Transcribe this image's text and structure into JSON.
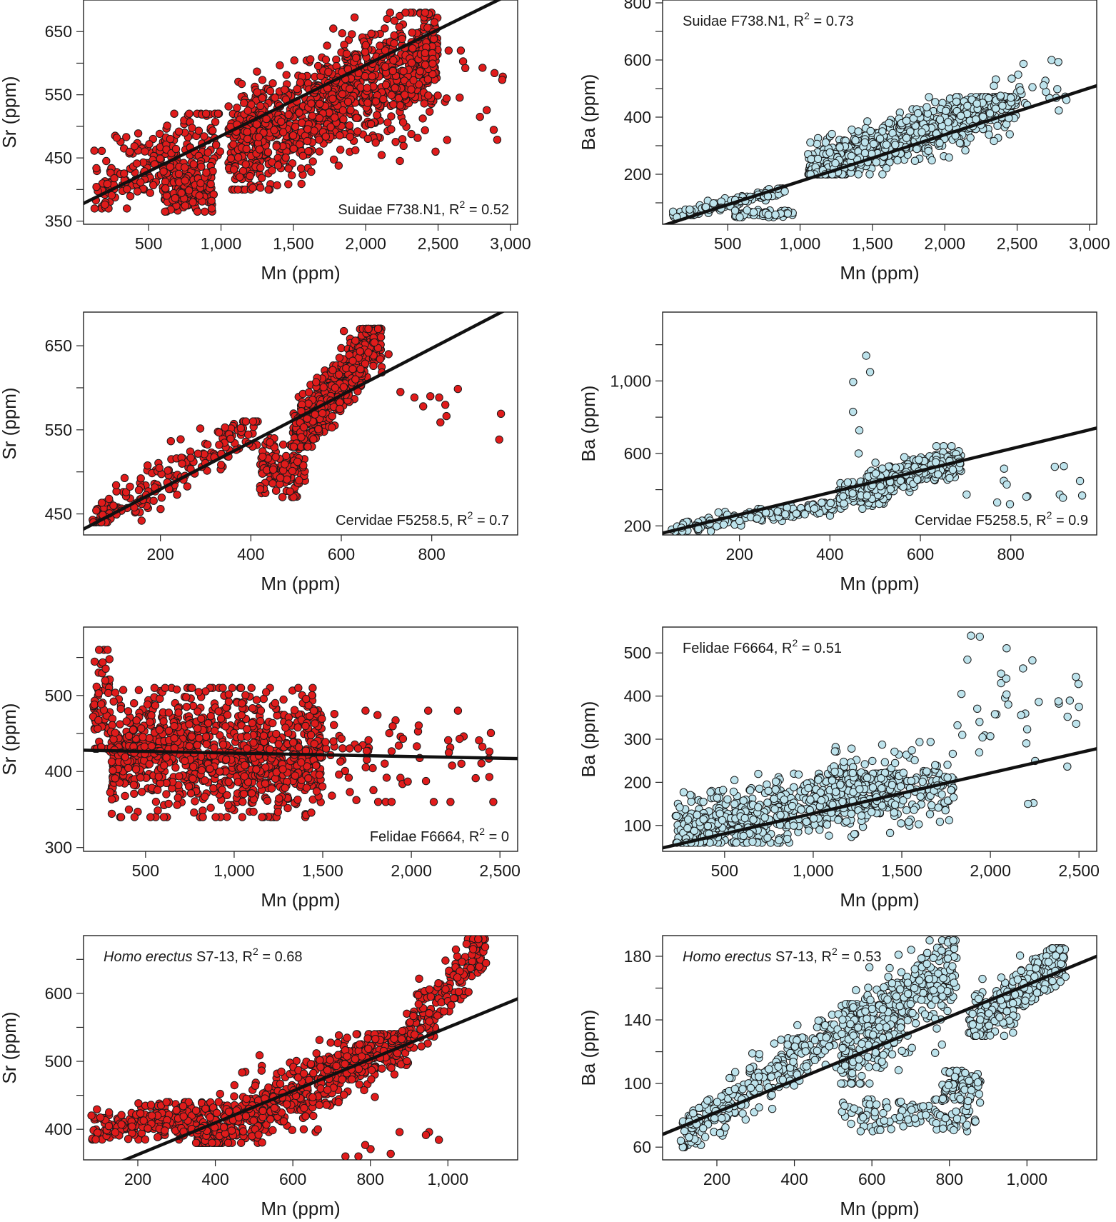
{
  "figure": {
    "colors": {
      "sr_points": "#e01b1b",
      "ba_points": "#bde3ec",
      "point_edge": "#1a1a1a",
      "line": "#111111"
    },
    "x_label": "Mn (ppm)"
  },
  "chart_data": [
    {
      "id": "suidae-sr",
      "type": "scatter",
      "title": "",
      "xlabel": "Mn (ppm)",
      "ylabel": "Sr (ppm)",
      "xlim": [
        50,
        3050
      ],
      "ylim": [
        345,
        700
      ],
      "xticks": [
        500,
        1000,
        1500,
        2000,
        2500,
        3000
      ],
      "xtick_labels": [
        "500",
        "1,000",
        "1,500",
        "2,000",
        "2,500",
        "3,000"
      ],
      "yticks": [
        350,
        450,
        550,
        650
      ],
      "yminor": [
        400,
        500,
        600
      ],
      "ytick_labels": [
        "350",
        "450",
        "550",
        "650"
      ],
      "annotation": {
        "pos": "bottom-right",
        "taxon": "Suidae",
        "taxon_italic": false,
        "specimen": "F738.N1",
        "r2": "0.52"
      },
      "point_color": "#e01b1b",
      "fit": {
        "x0": 50,
        "y0": 378,
        "x1": 3050,
        "y1": 715
      },
      "clusters": [
        {
          "n": 200,
          "x": [
            120,
            1000
          ],
          "y": [
            370,
            520
          ],
          "slope": 0.12,
          "sd": 28,
          "seed": 11
        },
        {
          "n": 170,
          "x": [
            600,
            950
          ],
          "y": [
            365,
            440
          ],
          "sd": 18,
          "seed": 12
        },
        {
          "n": 1100,
          "x": [
            1050,
            2500
          ],
          "y": [
            400,
            680
          ],
          "slope": 0.11,
          "sd": 40,
          "seed": 13
        },
        {
          "n": 40,
          "x": [
            1800,
            2950
          ],
          "y": [
            460,
            620
          ],
          "sd": 40,
          "seed": 14
        }
      ]
    },
    {
      "id": "suidae-ba",
      "type": "scatter",
      "title": "",
      "xlabel": "Mn (ppm)",
      "ylabel": "Ba (ppm)",
      "xlim": [
        50,
        3050
      ],
      "ylim": [
        25,
        810
      ],
      "xticks": [
        500,
        1000,
        1500,
        2000,
        2500,
        3000
      ],
      "xtick_labels": [
        "500",
        "1,000",
        "1,500",
        "2,000",
        "2,500",
        "3,000"
      ],
      "yticks": [
        200,
        400,
        600,
        800
      ],
      "yminor": [
        100,
        300,
        500,
        700
      ],
      "ytick_labels": [
        "200",
        "400",
        "600",
        "800"
      ],
      "annotation": {
        "pos": "top-left",
        "taxon": "Suidae",
        "taxon_italic": false,
        "specimen": "F738.N1",
        "r2": "0.73"
      },
      "point_color": "#bde3ec",
      "fit": {
        "x0": 50,
        "y0": 20,
        "x1": 3050,
        "y1": 510
      },
      "clusters": [
        {
          "n": 110,
          "x": [
            120,
            900
          ],
          "y": [
            50,
            150
          ],
          "slope": 0.13,
          "sd": 10,
          "seed": 21
        },
        {
          "n": 70,
          "x": [
            550,
            950
          ],
          "y": [
            50,
            75
          ],
          "sd": 6,
          "seed": 22
        },
        {
          "n": 900,
          "x": [
            1050,
            2500
          ],
          "y": [
            200,
            470
          ],
          "slope": 0.18,
          "sd": 40,
          "seed": 23
        },
        {
          "n": 30,
          "x": [
            2300,
            2900
          ],
          "y": [
            380,
            600
          ],
          "sd": 50,
          "seed": 24
        }
      ]
    },
    {
      "id": "cervidae-sr",
      "type": "scatter",
      "title": "",
      "xlabel": "Mn (ppm)",
      "ylabel": "Sr (ppm)",
      "xlim": [
        30,
        990
      ],
      "ylim": [
        425,
        690
      ],
      "xticks": [
        200,
        400,
        600,
        800
      ],
      "xtick_labels": [
        "200",
        "400",
        "600",
        "800"
      ],
      "yticks": [
        450,
        550,
        650
      ],
      "yminor": [
        500,
        600
      ],
      "ytick_labels": [
        "450",
        "550",
        "650"
      ],
      "annotation": {
        "pos": "bottom-right",
        "taxon": "Cervidae",
        "taxon_italic": false,
        "specimen": "F5258.5",
        "r2": "0.7"
      },
      "point_color": "#e01b1b",
      "fit": {
        "x0": 30,
        "y0": 432,
        "x1": 990,
        "y1": 700
      },
      "clusters": [
        {
          "n": 180,
          "x": [
            50,
            420
          ],
          "y": [
            440,
            560
          ],
          "slope": 0.32,
          "sd": 14,
          "seed": 31
        },
        {
          "n": 130,
          "x": [
            420,
            520
          ],
          "y": [
            470,
            540
          ],
          "sd": 18,
          "seed": 32
        },
        {
          "n": 550,
          "x": [
            490,
            690
          ],
          "y": [
            530,
            670
          ],
          "slope": 0.65,
          "sd": 18,
          "seed": 33
        },
        {
          "n": 12,
          "x": [
            700,
            960
          ],
          "y": [
            520,
            640
          ],
          "sd": 40,
          "seed": 34
        }
      ]
    },
    {
      "id": "cervidae-ba",
      "type": "scatter",
      "title": "",
      "xlabel": "Mn (ppm)",
      "ylabel": "Ba (ppm)",
      "xlim": [
        30,
        990
      ],
      "ylim": [
        150,
        1380
      ],
      "xticks": [
        200,
        400,
        600,
        800
      ],
      "xtick_labels": [
        "200",
        "400",
        "600",
        "800"
      ],
      "yticks": [
        200,
        600,
        1000
      ],
      "yminor": [
        400,
        800,
        1200
      ],
      "ytick_labels": [
        "200",
        "600",
        "1,000"
      ],
      "annotation": {
        "pos": "bottom-right",
        "taxon": "Cervidae",
        "taxon_italic": false,
        "specimen": "F5258.5",
        "r2": "0.9"
      },
      "point_color": "#bde3ec",
      "fit": {
        "x0": 30,
        "y0": 160,
        "x1": 990,
        "y1": 740
      },
      "clusters": [
        {
          "n": 150,
          "x": [
            50,
            420
          ],
          "y": [
            170,
            330
          ],
          "slope": 0.35,
          "sd": 20,
          "seed": 41
        },
        {
          "n": 120,
          "x": [
            420,
            530
          ],
          "y": [
            280,
            470
          ],
          "sd": 35,
          "seed": 42
        },
        {
          "n": 450,
          "x": [
            480,
            690
          ],
          "y": [
            350,
            640
          ],
          "slope": 0.6,
          "sd": 35,
          "seed": 43
        },
        {
          "n": 14,
          "x": [
            700,
            960
          ],
          "y": [
            300,
            560
          ],
          "sd": 60,
          "seed": 44
        },
        {
          "n": 6,
          "x": [
            450,
            490
          ],
          "y": [
            600,
            1350
          ],
          "sd": 200,
          "seed": 45
        }
      ]
    },
    {
      "id": "felidae-sr",
      "type": "scatter",
      "title": "",
      "xlabel": "Mn (ppm)",
      "ylabel": "Sr (ppm)",
      "xlim": [
        150,
        2600
      ],
      "ylim": [
        295,
        590
      ],
      "xticks": [
        500,
        1000,
        1500,
        2000,
        2500
      ],
      "xtick_labels": [
        "500",
        "1,000",
        "1,500",
        "2,000",
        "2,500"
      ],
      "yticks": [
        300,
        400,
        500
      ],
      "yminor": [
        350,
        450,
        550
      ],
      "ytick_labels": [
        "300",
        "400",
        "500"
      ],
      "annotation": {
        "pos": "bottom-right",
        "taxon": "Felidae",
        "taxon_italic": false,
        "specimen": "F6664",
        "r2": "0"
      },
      "point_color": "#e01b1b",
      "fit": {
        "x0": 150,
        "y0": 428,
        "x1": 2600,
        "y1": 417
      },
      "clusters": [
        {
          "n": 60,
          "x": [
            200,
            300
          ],
          "y": [
            430,
            560
          ],
          "sd": 35,
          "seed": 51
        },
        {
          "n": 1000,
          "x": [
            300,
            1500
          ],
          "y": [
            340,
            510
          ],
          "sd": 40,
          "seed": 52
        },
        {
          "n": 80,
          "x": [
            1400,
            2500
          ],
          "y": [
            360,
            480
          ],
          "sd": 35,
          "seed": 53
        }
      ]
    },
    {
      "id": "felidae-ba",
      "type": "scatter",
      "title": "",
      "xlabel": "Mn (ppm)",
      "ylabel": "Ba (ppm)",
      "xlim": [
        150,
        2600
      ],
      "ylim": [
        40,
        560
      ],
      "xticks": [
        500,
        1000,
        1500,
        2000,
        2500
      ],
      "xtick_labels": [
        "500",
        "1,000",
        "1,500",
        "2,000",
        "2,500"
      ],
      "yticks": [
        100,
        200,
        300,
        400,
        500
      ],
      "yminor": [],
      "ytick_labels": [
        "100",
        "200",
        "300",
        "400",
        "500"
      ],
      "annotation": {
        "pos": "top-left",
        "taxon": "Felidae",
        "taxon_italic": false,
        "specimen": "F6664",
        "r2": "0.51"
      },
      "point_color": "#bde3ec",
      "fit": {
        "x0": 150,
        "y0": 48,
        "x1": 2600,
        "y1": 278
      },
      "clusters": [
        {
          "n": 750,
          "x": [
            220,
            1500
          ],
          "y": [
            60,
            220
          ],
          "slope": 0.09,
          "sd": 35,
          "seed": 61
        },
        {
          "n": 200,
          "x": [
            1100,
            1800
          ],
          "y": [
            80,
            300
          ],
          "sd": 45,
          "seed": 62
        },
        {
          "n": 40,
          "x": [
            1800,
            2500
          ],
          "y": [
            150,
            540
          ],
          "sd": 80,
          "seed": 63
        }
      ]
    },
    {
      "id": "homo-sr",
      "type": "scatter",
      "title": "",
      "xlabel": "Mn (ppm)",
      "ylabel": "Sr (ppm)",
      "xlim": [
        60,
        1180
      ],
      "ylim": [
        355,
        685
      ],
      "xticks": [
        200,
        400,
        600,
        800,
        1000
      ],
      "xtick_labels": [
        "200",
        "400",
        "600",
        "800",
        "1,000"
      ],
      "yticks": [
        400,
        500,
        600
      ],
      "yminor": [
        450,
        550,
        650
      ],
      "ytick_labels": [
        "400",
        "500",
        "600"
      ],
      "annotation": {
        "pos": "top-left",
        "taxon": "Homo erectus",
        "taxon_italic": true,
        "specimen": "S7-13",
        "r2": "0.68"
      },
      "point_color": "#e01b1b",
      "fit": {
        "x0": 60,
        "y0": 330,
        "x1": 1180,
        "y1": 592
      },
      "clusters": [
        {
          "n": 220,
          "x": [
            80,
            400
          ],
          "y": [
            385,
            440
          ],
          "slope": 0.05,
          "sd": 14,
          "seed": 71
        },
        {
          "n": 650,
          "x": [
            350,
            900
          ],
          "y": [
            380,
            540
          ],
          "slope": 0.28,
          "sd": 22,
          "seed": 72
        },
        {
          "n": 180,
          "x": [
            880,
            1100
          ],
          "y": [
            520,
            680
          ],
          "slope": 0.7,
          "sd": 22,
          "seed": 73
        },
        {
          "n": 12,
          "x": [
            600,
            1000
          ],
          "y": [
            360,
            400
          ],
          "sd": 20,
          "seed": 74
        }
      ]
    },
    {
      "id": "homo-ba",
      "type": "scatter",
      "title": "",
      "xlabel": "Mn (ppm)",
      "ylabel": "Ba (ppm)",
      "xlim": [
        60,
        1180
      ],
      "ylim": [
        52,
        193
      ],
      "xticks": [
        200,
        400,
        600,
        800,
        1000
      ],
      "xtick_labels": [
        "200",
        "400",
        "600",
        "800",
        "1,000"
      ],
      "yticks": [
        60,
        100,
        140,
        180
      ],
      "yminor": [
        80,
        120,
        160
      ],
      "ytick_labels": [
        "60",
        "100",
        "140",
        "180"
      ],
      "annotation": {
        "pos": "top-left",
        "taxon": "Homo erectus",
        "taxon_italic": true,
        "specimen": "S7-13",
        "r2": "0.53"
      },
      "point_color": "#bde3ec",
      "fit": {
        "x0": 60,
        "y0": 68,
        "x1": 1180,
        "y1": 180
      },
      "clusters": [
        {
          "n": 350,
          "x": [
            100,
            580
          ],
          "y": [
            60,
            150
          ],
          "slope": 0.17,
          "sd": 8,
          "seed": 81
        },
        {
          "n": 400,
          "x": [
            520,
            820
          ],
          "y": [
            100,
            190
          ],
          "slope": 0.2,
          "sd": 14,
          "seed": 82
        },
        {
          "n": 120,
          "x": [
            520,
            870
          ],
          "y": [
            70,
            90
          ],
          "sd": 6,
          "seed": 83
        },
        {
          "n": 80,
          "x": [
            780,
            880
          ],
          "y": [
            88,
            108
          ],
          "sd": 6,
          "seed": 84
        },
        {
          "n": 300,
          "x": [
            850,
            1100
          ],
          "y": [
            130,
            185
          ],
          "slope": 0.2,
          "sd": 9,
          "seed": 85
        }
      ]
    }
  ]
}
